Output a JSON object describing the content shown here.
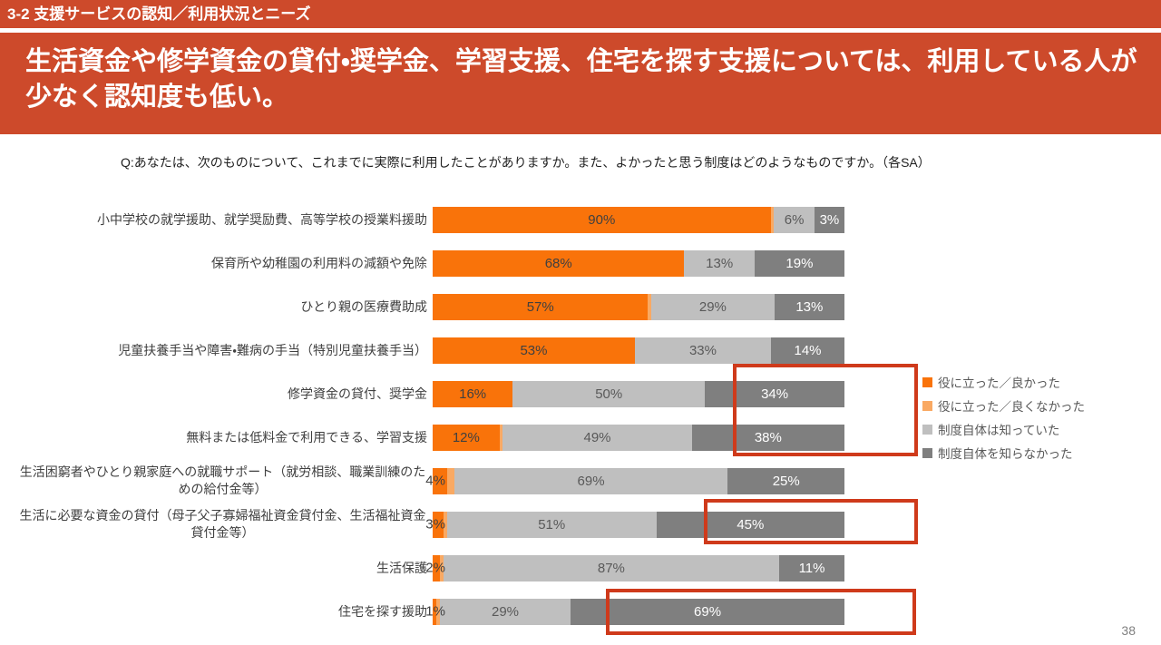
{
  "slide": {
    "kicker": "3-2 支援サービスの認知／利用状況とニーズ",
    "headline": "生活資金や修学資金の貸付・奨学金、学習支援、住宅を探す支援については、利用している人が少なく認知度も低い。",
    "question": "Q:あなたは、次のものについて、これまでに実際に利用したことがありますか。また、よかったと思う制度はどのようなものですか。（各SA）",
    "page_number": "38"
  },
  "colors": {
    "banner_red": "#CD4A2B",
    "highlight_red": "#CF3A1B",
    "bar_orange": "#F9730A",
    "bar_light_orange": "#F9A963",
    "bar_light_gray": "#BFBFBF",
    "bar_dark_gray": "#7F7F7F",
    "text_dark": "#404040",
    "text_gray": "#595959"
  },
  "chart_data": {
    "type": "bar",
    "orientation": "horizontal",
    "stacked": true,
    "title": "",
    "xlabel": "",
    "ylabel": "",
    "xlim": [
      0,
      100
    ],
    "grid": false,
    "legend_position": "right",
    "categories": [
      "小中学校の就学援助、就学奨励費、高等学校の授業料援助",
      "保育所や幼稚園の利用料の減額や免除",
      "ひとり親の医療費助成",
      "児童扶養手当や障害・難病の手当（特別児童扶養手当）",
      "修学資金の貸付、奨学金",
      "無料または低料金で利用できる、学習支援",
      "生活困窮者やひとり親家庭への就職サポート（就労相談、職業訓練のための給付金等）",
      "生活に必要な資金の貸付（母子父子寡婦福祉資金貸付金、生活福祉資金貸付金等）",
      "生活保護",
      "住宅を探す援助"
    ],
    "series": [
      {
        "name": "役に立った／良かった",
        "color": "#F9730A",
        "label_color": "#404040",
        "values": [
          90,
          68,
          57,
          53,
          16,
          12,
          4,
          3,
          2,
          1
        ],
        "labels": [
          "90%",
          "68%",
          "57%",
          "53%",
          "16%",
          "12%",
          null,
          null,
          null,
          null
        ]
      },
      {
        "name": "役に立った／良くなかった",
        "color": "#F9A963",
        "label_color": "#404040",
        "values": [
          1,
          0,
          1,
          0,
          0,
          1,
          2,
          1,
          1,
          1
        ],
        "labels": [
          null,
          null,
          null,
          null,
          null,
          null,
          null,
          null,
          null,
          null
        ]
      },
      {
        "name": "制度自体は知っていた",
        "color": "#BFBFBF",
        "label_color": "#595959",
        "values": [
          6,
          13,
          29,
          33,
          50,
          49,
          69,
          51,
          87,
          29
        ],
        "labels": [
          "6%",
          "13%",
          "29%",
          "33%",
          "50%",
          "49%",
          "69%",
          "51%",
          "87%",
          "29%"
        ]
      },
      {
        "name": "制度自体を知らなかった",
        "color": "#7F7F7F",
        "label_color": "#FFFFFF",
        "values": [
          3,
          19,
          13,
          14,
          34,
          38,
          25,
          45,
          11,
          69
        ],
        "labels": [
          "3%",
          "19%",
          "13%",
          "14%",
          "34%",
          "38%",
          "25%",
          "45%",
          "11%",
          "69%"
        ]
      }
    ],
    "tiny_labels": [
      null,
      null,
      null,
      null,
      null,
      null,
      "4%",
      "3%",
      "2%",
      "1%"
    ],
    "highlights": [
      "修学資金の貸付、奨学金：制度自体を知らなかった 34%",
      "無料または低料金で利用できる、学習支援：制度自体を知らなかった 38%",
      "生活に必要な資金の貸付：制度自体を知らなかった 45%",
      "住宅を探す援助：制度自体を知らなかった 69%"
    ]
  }
}
